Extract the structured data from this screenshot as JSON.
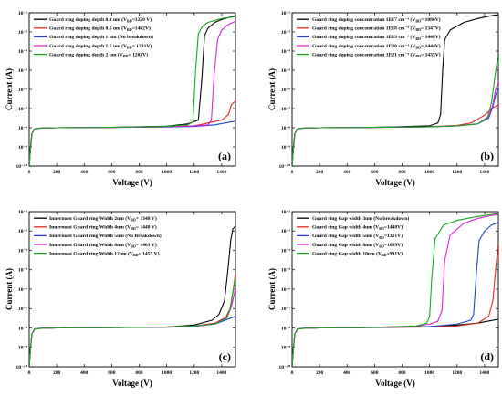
{
  "chart_data": [
    {
      "type": "line",
      "panel_label": "(a)",
      "xlabel": "Voltage (V)",
      "ylabel": "Current (A)",
      "xlim": [
        0,
        1500
      ],
      "ylim_exponent": [
        -10,
        -2
      ],
      "y_scale": "log",
      "x_ticks": [
        "0",
        "200",
        "400",
        "600",
        "800",
        "1000",
        "1200",
        "1400"
      ],
      "y_ticks": [
        "10⁻¹⁰",
        "10⁻⁹",
        "10⁻⁸",
        "10⁻⁷",
        "10⁻⁶",
        "10⁻⁵",
        "10⁻⁴",
        "10⁻³",
        "10⁻²"
      ],
      "legend_position": "top-left",
      "series": [
        {
          "name": "Guard ring doping depth 0.1 um (V_BD=1250 V)",
          "color": "#000000",
          "x": [
            0,
            10,
            20,
            40,
            80,
            200,
            600,
            1000,
            1150,
            1230,
            1255,
            1275,
            1300,
            1350,
            1400,
            1450,
            1500
          ],
          "y_exponent": [
            -10,
            -9,
            -8.3,
            -8.05,
            -8.02,
            -8,
            -7.98,
            -7.92,
            -7.8,
            -7.6,
            -5.5,
            -3.2,
            -2.8,
            -2.5,
            -2.35,
            -2.25,
            -2.15
          ]
        },
        {
          "name": "Guard ring doping depth 0.5 um (V_BD=1462V)",
          "color": "#e8281e",
          "x": [
            0,
            10,
            20,
            40,
            80,
            200,
            600,
            1000,
            1200,
            1400,
            1450,
            1470,
            1500
          ],
          "y_exponent": [
            -10,
            -9,
            -8.3,
            -8.05,
            -8.02,
            -8,
            -7.98,
            -7.95,
            -7.9,
            -7.6,
            -7.3,
            -6.8,
            -6.6
          ]
        },
        {
          "name": "Guard ring doping depth 1 um (No breakdown)",
          "color": "#1f3fd6",
          "x": [
            0,
            10,
            20,
            40,
            80,
            200,
            600,
            1000,
            1200,
            1350,
            1500
          ],
          "y_exponent": [
            -10,
            -9,
            -8.3,
            -8.05,
            -8.02,
            -8,
            -7.98,
            -7.96,
            -7.93,
            -7.85,
            -7.65
          ]
        },
        {
          "name": "Guard ring doping depth 1.5 um (V_BD= 1331V)",
          "color": "#e020d8",
          "x": [
            0,
            10,
            20,
            40,
            80,
            200,
            600,
            1000,
            1200,
            1300,
            1325,
            1345,
            1370,
            1400,
            1450,
            1500
          ],
          "y_exponent": [
            -10,
            -9,
            -8.3,
            -8.05,
            -8.02,
            -8,
            -7.98,
            -7.95,
            -7.9,
            -7.85,
            -7.6,
            -5.2,
            -3.4,
            -2.9,
            -2.6,
            -2.45
          ]
        },
        {
          "name": "Guard ring doping depth 2 um (V_BD= 1203V)",
          "color": "#12a81c",
          "x": [
            0,
            10,
            20,
            40,
            80,
            200,
            600,
            1000,
            1150,
            1190,
            1210,
            1230,
            1260,
            1300,
            1400,
            1500
          ],
          "y_exponent": [
            -10,
            -9,
            -8.3,
            -8.05,
            -8.02,
            -8,
            -7.98,
            -7.93,
            -7.85,
            -7.7,
            -5.0,
            -3.1,
            -2.7,
            -2.5,
            -2.3,
            -2.2
          ]
        }
      ]
    },
    {
      "type": "line",
      "panel_label": "(b)",
      "xlabel": "Voltage (V)",
      "ylabel": "Current (A)",
      "xlim": [
        0,
        1500
      ],
      "ylim_exponent": [
        -10,
        -2
      ],
      "y_scale": "log",
      "x_ticks": [
        "0",
        "200",
        "400",
        "600",
        "800",
        "1000",
        "1200",
        "1400"
      ],
      "y_ticks": [
        "10⁻¹⁰",
        "10⁻⁹",
        "10⁻⁸",
        "10⁻⁷",
        "10⁻⁶",
        "10⁻⁵",
        "10⁻⁴",
        "10⁻³",
        "10⁻²"
      ],
      "legend_position": "top-left",
      "series": [
        {
          "name": "Guard ring doping concentration 1E17 cm⁻³ (V_BD= 1086V)",
          "color": "#000000",
          "x": [
            0,
            10,
            20,
            40,
            80,
            200,
            600,
            1000,
            1060,
            1080,
            1095,
            1110,
            1150,
            1250,
            1350,
            1450,
            1500
          ],
          "y_exponent": [
            -10,
            -9,
            -8.3,
            -8.05,
            -8.02,
            -8,
            -7.98,
            -7.9,
            -7.75,
            -7.3,
            -5.0,
            -3.4,
            -2.9,
            -2.5,
            -2.3,
            -2.15,
            -2.1
          ]
        },
        {
          "name": "Guard ring doping concentration 1E18 cm⁻³ (V_BD= 1347V)",
          "color": "#e8281e",
          "x": [
            0,
            10,
            20,
            40,
            80,
            200,
            600,
            1000,
            1200,
            1300,
            1400,
            1450,
            1500
          ],
          "y_exponent": [
            -10,
            -9,
            -8.3,
            -8.05,
            -8.02,
            -8,
            -7.98,
            -7.95,
            -7.88,
            -7.75,
            -7.35,
            -7.0,
            -6.8
          ]
        },
        {
          "name": "Guard ring doping concentration 1E19 cm⁻³ (V_BD= 1448V)",
          "color": "#1f3fd6",
          "x": [
            0,
            10,
            20,
            40,
            80,
            200,
            600,
            1000,
            1200,
            1350,
            1430,
            1460,
            1480,
            1500
          ],
          "y_exponent": [
            -10,
            -9,
            -8.3,
            -8.05,
            -8.02,
            -8,
            -7.98,
            -7.95,
            -7.9,
            -7.8,
            -7.5,
            -6.9,
            -6.3,
            -5.9
          ]
        },
        {
          "name": "Guard ring doping concentration 1E20 cm⁻³ (V_BD= 1444V)",
          "color": "#e020d8",
          "x": [
            0,
            10,
            20,
            40,
            80,
            200,
            600,
            1000,
            1200,
            1350,
            1430,
            1460,
            1480,
            1500
          ],
          "y_exponent": [
            -10,
            -9,
            -8.3,
            -8.05,
            -8.02,
            -8,
            -7.98,
            -7.95,
            -7.9,
            -7.8,
            -7.4,
            -6.8,
            -6.0,
            -5.6
          ]
        },
        {
          "name": "Guard ring doping concentration 1E21 cm⁻³ (V_BD= 1435V)",
          "color": "#12a81c",
          "x": [
            0,
            10,
            20,
            40,
            80,
            200,
            600,
            1000,
            1200,
            1350,
            1420,
            1450,
            1470,
            1490,
            1500
          ],
          "y_exponent": [
            -10,
            -9,
            -8.3,
            -8.05,
            -8.02,
            -8,
            -7.98,
            -7.95,
            -7.9,
            -7.8,
            -7.5,
            -6.7,
            -5.6,
            -4.6,
            -4.2
          ]
        }
      ]
    },
    {
      "type": "line",
      "panel_label": "(c)",
      "xlabel": "Voltage (V)",
      "ylabel": "Current (A)",
      "xlim": [
        0,
        1500
      ],
      "ylim_exponent": [
        -10,
        -2
      ],
      "y_scale": "log",
      "x_ticks": [
        "0",
        "200",
        "400",
        "600",
        "800",
        "1000",
        "1200",
        "1400"
      ],
      "y_ticks": [
        "10⁻¹⁰",
        "10⁻⁹",
        "10⁻⁸",
        "10⁻⁷",
        "10⁻⁶",
        "10⁻⁵",
        "10⁻⁴",
        "10⁻³",
        "10⁻²"
      ],
      "legend_position": "top-left",
      "series": [
        {
          "name": "Innermost Guard ring Width 2um (V_BD= 1348 V)",
          "color": "#000000",
          "x": [
            0,
            10,
            20,
            40,
            80,
            200,
            600,
            1000,
            1200,
            1330,
            1380,
            1420,
            1445,
            1465,
            1480,
            1500
          ],
          "y_exponent": [
            -10,
            -9,
            -8.3,
            -8.05,
            -8.02,
            -8,
            -7.98,
            -7.95,
            -7.85,
            -7.6,
            -7.3,
            -6.6,
            -5.0,
            -3.5,
            -2.9,
            -2.75
          ]
        },
        {
          "name": "Innermost Guard ring Width 4um (V_BD= 1448 V)",
          "color": "#e8281e",
          "x": [
            0,
            10,
            20,
            40,
            80,
            200,
            600,
            1000,
            1200,
            1350,
            1430,
            1460,
            1480,
            1500
          ],
          "y_exponent": [
            -10,
            -9,
            -8.3,
            -8.05,
            -8.02,
            -8,
            -7.98,
            -7.95,
            -7.9,
            -7.75,
            -7.45,
            -7.0,
            -6.2,
            -5.2
          ]
        },
        {
          "name": "Innermost Guard ring Width 5um (No Breakdown)",
          "color": "#1f3fd6",
          "x": [
            0,
            10,
            20,
            40,
            80,
            200,
            600,
            1000,
            1200,
            1350,
            1500
          ],
          "y_exponent": [
            -10,
            -9,
            -8.3,
            -8.05,
            -8.02,
            -8,
            -7.98,
            -7.96,
            -7.92,
            -7.8,
            -7.4
          ]
        },
        {
          "name": "Innermost Guard ring Width 8um (V_BD= 1461 V)",
          "color": "#e020d8",
          "x": [
            0,
            10,
            20,
            40,
            80,
            200,
            600,
            1000,
            1200,
            1350,
            1440,
            1470,
            1490,
            1500
          ],
          "y_exponent": [
            -10,
            -9,
            -8.3,
            -8.05,
            -8.02,
            -8,
            -7.98,
            -7.95,
            -7.9,
            -7.8,
            -7.45,
            -6.9,
            -6.3,
            -5.9
          ]
        },
        {
          "name": "Innermost Guard ring Width 12um (V_BD= 1455 V)",
          "color": "#12a81c",
          "x": [
            0,
            10,
            20,
            40,
            80,
            200,
            600,
            1000,
            1200,
            1350,
            1435,
            1465,
            1485,
            1500
          ],
          "y_exponent": [
            -10,
            -9,
            -8.3,
            -8.05,
            -8.02,
            -8,
            -7.98,
            -7.95,
            -7.9,
            -7.8,
            -7.5,
            -6.9,
            -6.0,
            -5.4
          ]
        }
      ]
    },
    {
      "type": "line",
      "panel_label": "(d)",
      "xlabel": "Voltage (V)",
      "ylabel": "Current (A)",
      "xlim": [
        0,
        1500
      ],
      "ylim_exponent": [
        -10,
        -2
      ],
      "y_scale": "log",
      "x_ticks": [
        "0",
        "200",
        "400",
        "600",
        "800",
        "1000",
        "1200",
        "1400"
      ],
      "y_ticks": [
        "10⁻¹⁰",
        "10⁻⁹",
        "10⁻⁸",
        "10⁻⁷",
        "10⁻⁶",
        "10⁻⁵",
        "10⁻⁴",
        "10⁻³",
        "10⁻²"
      ],
      "legend_position": "top-left",
      "series": [
        {
          "name": "Guard ring Gap width 3um (No breakdown)",
          "color": "#000000",
          "x": [
            0,
            10,
            20,
            40,
            80,
            200,
            600,
            1000,
            1200,
            1350,
            1500
          ],
          "y_exponent": [
            -10,
            -9,
            -8.3,
            -8.05,
            -8.02,
            -8,
            -7.97,
            -7.93,
            -7.85,
            -7.75,
            -7.55
          ]
        },
        {
          "name": "Guard ring Gap width 4um (V_BD=1448V)",
          "color": "#e8281e",
          "x": [
            0,
            10,
            20,
            40,
            80,
            200,
            600,
            1000,
            1200,
            1350,
            1430,
            1460,
            1480,
            1500
          ],
          "y_exponent": [
            -10,
            -9,
            -8.3,
            -8.05,
            -8.02,
            -8,
            -7.98,
            -7.95,
            -7.9,
            -7.75,
            -7.4,
            -6.6,
            -5.0,
            -3.6
          ]
        },
        {
          "name": "Guard ring Gap width 5um (V_BD=1321V)",
          "color": "#1f3fd6",
          "x": [
            0,
            10,
            20,
            40,
            80,
            200,
            600,
            1000,
            1200,
            1300,
            1320,
            1340,
            1360,
            1400,
            1450,
            1500
          ],
          "y_exponent": [
            -10,
            -9,
            -8.3,
            -8.05,
            -8.02,
            -8,
            -7.98,
            -7.93,
            -7.8,
            -7.6,
            -7.3,
            -5.2,
            -3.5,
            -3.0,
            -2.7,
            -2.55
          ]
        },
        {
          "name": "Guard ring Gap width 8um (V_BD=1099V)",
          "color": "#e020d8",
          "x": [
            0,
            10,
            20,
            40,
            80,
            200,
            600,
            900,
            1000,
            1060,
            1090,
            1110,
            1150,
            1250,
            1350,
            1450,
            1500
          ],
          "y_exponent": [
            -10,
            -9,
            -8.3,
            -8.05,
            -8.02,
            -8,
            -7.97,
            -7.9,
            -7.8,
            -7.65,
            -7.1,
            -4.5,
            -3.2,
            -2.6,
            -2.35,
            -2.2,
            -2.15
          ]
        },
        {
          "name": "Guard ring Gap width 10um (V_BD=991V)",
          "color": "#12a81c",
          "x": [
            0,
            10,
            20,
            40,
            80,
            200,
            600,
            900,
            980,
            1000,
            1015,
            1040,
            1100,
            1200,
            1350,
            1500
          ],
          "y_exponent": [
            -10,
            -9,
            -8.3,
            -8.05,
            -8.02,
            -8,
            -7.97,
            -7.9,
            -7.75,
            -7.4,
            -5.5,
            -3.4,
            -2.7,
            -2.45,
            -2.25,
            -2.1
          ]
        }
      ]
    }
  ]
}
